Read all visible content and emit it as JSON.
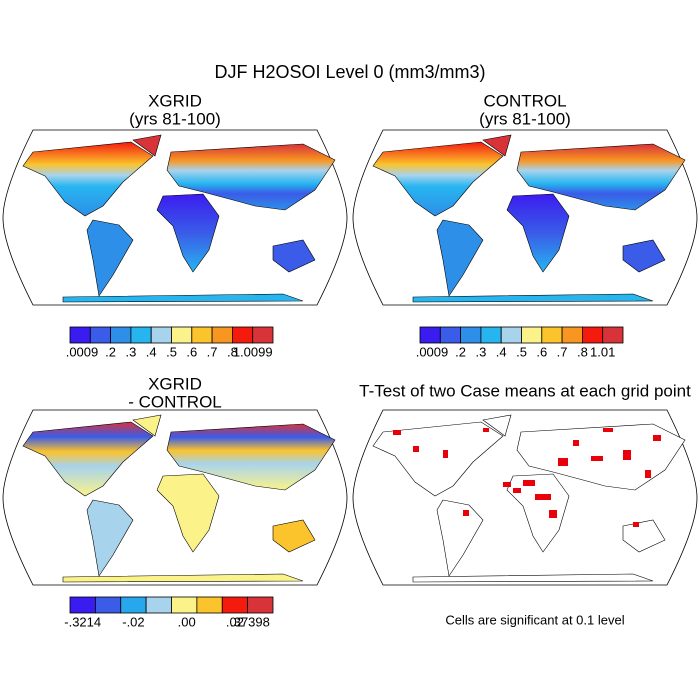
{
  "title": "DJF H2OSOI Level 0 (mm3/mm3)",
  "panels": [
    {
      "title": [
        "XGRID",
        "(yrs 81-100)"
      ],
      "colorbar": {
        "colors": [
          "#3b1cf0",
          "#3a5ce8",
          "#2d8fe8",
          "#27b5f0",
          "#a8d3ec",
          "#fbf38a",
          "#fbc32c",
          "#f79621",
          "#f41a0e",
          "#d9333a"
        ],
        "labels": [
          ".0009",
          ".2",
          ".3",
          ".4",
          ".5",
          ".6",
          ".7",
          ".8",
          "1.0099"
        ]
      }
    },
    {
      "title": [
        "CONTROL",
        "(yrs 81-100)"
      ],
      "colorbar": {
        "colors": [
          "#3b1cf0",
          "#3a5ce8",
          "#2d8fe8",
          "#27b5f0",
          "#a8d3ec",
          "#fbf38a",
          "#fbc32c",
          "#f79621",
          "#f41a0e",
          "#d9333a"
        ],
        "labels": [
          ".0009",
          ".2",
          ".3",
          ".4",
          ".5",
          ".6",
          ".7",
          ".8",
          "1.01"
        ]
      }
    },
    {
      "title": [
        "XGRID",
        "- CONTROL"
      ],
      "colorbar": {
        "colors": [
          "#3b1cf0",
          "#3a5ce8",
          "#27a8ec",
          "#a8d3ec",
          "#fbf38a",
          "#fbc32c",
          "#f41a0e",
          "#d9333a"
        ],
        "labels": [
          "-.3214",
          "-.02",
          ".00",
          ".02",
          ".37398"
        ]
      }
    },
    {
      "title": [
        "T-Test of two Case means at each grid point"
      ]
    }
  ],
  "note": "Cells are significant at 0.1 level"
}
